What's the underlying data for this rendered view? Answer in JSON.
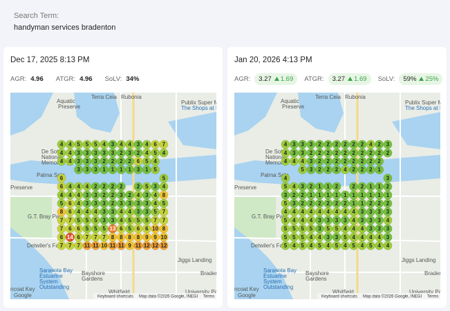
{
  "search": {
    "label": "Search Term:",
    "term": "handyman services bradenton"
  },
  "panels": [
    {
      "date": "Dec 17, 2025 8:13 PM",
      "metrics": [
        {
          "label": "AGR:",
          "value": "4.96"
        },
        {
          "label": "ATGR:",
          "value": "4.96"
        },
        {
          "label": "SoLV:",
          "value": "34%"
        }
      ],
      "grid": [
        [
          4,
          4,
          5,
          5,
          5,
          4,
          3,
          4,
          4,
          3,
          4,
          6,
          7
        ],
        [
          4,
          4,
          3,
          3,
          3,
          3,
          3,
          2,
          3,
          2,
          4,
          5,
          4
        ],
        [
          4,
          4,
          3,
          3,
          3,
          2,
          2,
          2,
          2,
          6,
          5,
          4,
          null
        ],
        [
          null,
          null,
          3,
          3,
          3,
          1,
          1,
          1,
          1,
          3,
          1,
          5,
          null
        ],
        [
          6,
          null,
          null,
          null,
          null,
          null,
          null,
          null,
          null,
          null,
          null,
          null,
          5
        ],
        [
          6,
          4,
          4,
          4,
          2,
          2,
          2,
          2,
          null,
          2,
          5,
          3,
          4
        ],
        [
          4,
          4,
          4,
          3,
          3,
          2,
          2,
          3,
          2,
          4,
          3,
          4,
          8
        ],
        [
          5,
          6,
          4,
          3,
          3,
          3,
          2,
          3,
          3,
          3,
          3,
          4,
          5
        ],
        [
          8,
          6,
          4,
          4,
          4,
          3,
          3,
          4,
          4,
          3,
          3,
          5,
          7
        ],
        [
          7,
          7,
          5,
          5,
          5,
          3,
          3,
          4,
          5,
          5,
          5,
          7,
          7
        ],
        [
          7,
          6,
          6,
          5,
          5,
          5,
          13,
          6,
          5,
          6,
          6,
          10,
          8
        ],
        [
          6,
          14,
          6,
          7,
          7,
          7,
          8,
          8,
          8,
          8,
          9,
          9,
          10
        ],
        [
          7,
          7,
          7,
          11,
          11,
          10,
          11,
          11,
          9,
          11,
          12,
          12,
          12
        ]
      ]
    },
    {
      "date": "Jan 20, 2026 4:13 PM",
      "metrics": [
        {
          "label": "AGR:",
          "value": "3.27",
          "change": "1.69"
        },
        {
          "label": "ATGR:",
          "value": "3.27",
          "change": "1.69"
        },
        {
          "label": "SoLV:",
          "value": "59%",
          "change": "25%"
        }
      ],
      "grid": [
        [
          4,
          3,
          3,
          3,
          2,
          2,
          2,
          2,
          2,
          2,
          4,
          2,
          3
        ],
        [
          4,
          3,
          3,
          2,
          2,
          2,
          2,
          2,
          2,
          2,
          2,
          2,
          2
        ],
        [
          4,
          4,
          4,
          3,
          2,
          2,
          2,
          2,
          2,
          2,
          2,
          2,
          null
        ],
        [
          null,
          null,
          5,
          3,
          2,
          2,
          2,
          4,
          2,
          2,
          2,
          1,
          null
        ],
        [
          4,
          null,
          null,
          null,
          null,
          null,
          null,
          null,
          null,
          null,
          null,
          null,
          3
        ],
        [
          5,
          4,
          3,
          2,
          1,
          1,
          2,
          null,
          2,
          2,
          1,
          1,
          2
        ],
        [
          3,
          2,
          2,
          1,
          1,
          1,
          1,
          1,
          1,
          1,
          1,
          1,
          1
        ],
        [
          5,
          3,
          2,
          2,
          2,
          2,
          2,
          2,
          1,
          1,
          2,
          2,
          2
        ],
        [
          4,
          4,
          4,
          4,
          4,
          4,
          4,
          4,
          4,
          3,
          3,
          3,
          3
        ],
        [
          5,
          4,
          4,
          4,
          3,
          3,
          3,
          3,
          4,
          3,
          3,
          3,
          4
        ],
        [
          5,
          5,
          5,
          5,
          3,
          5,
          5,
          4,
          4,
          4,
          3,
          3,
          3
        ],
        [
          5,
          5,
          5,
          4,
          4,
          3,
          3,
          5,
          4,
          4,
          4,
          4,
          3
        ],
        [
          5,
          4,
          5,
          4,
          5,
          4,
          5,
          4,
          5,
          4,
          5,
          4,
          4
        ]
      ]
    }
  ],
  "map_labels": [
    "Terra Ceia",
    "Rubonia",
    "Aquatic",
    "Preserve",
    "Publix Super M",
    "The Shops at S",
    "De Soto",
    "National",
    "Memorial",
    "Palma Sola",
    "Preserve",
    "G.T. Bray Park",
    "Detwiler's Fa",
    "Jiggs Landing",
    "Braden",
    "Sarasota Bay",
    "Estuarine",
    "System",
    "Outstanding",
    "Bayshore",
    "Gardens",
    "Whitfield",
    "University Park",
    "ncoat Key",
    "Google"
  ],
  "map_footer": [
    "Keyboard shortcuts",
    "Map data ©2026 Google, INEGI",
    "Terms"
  ]
}
